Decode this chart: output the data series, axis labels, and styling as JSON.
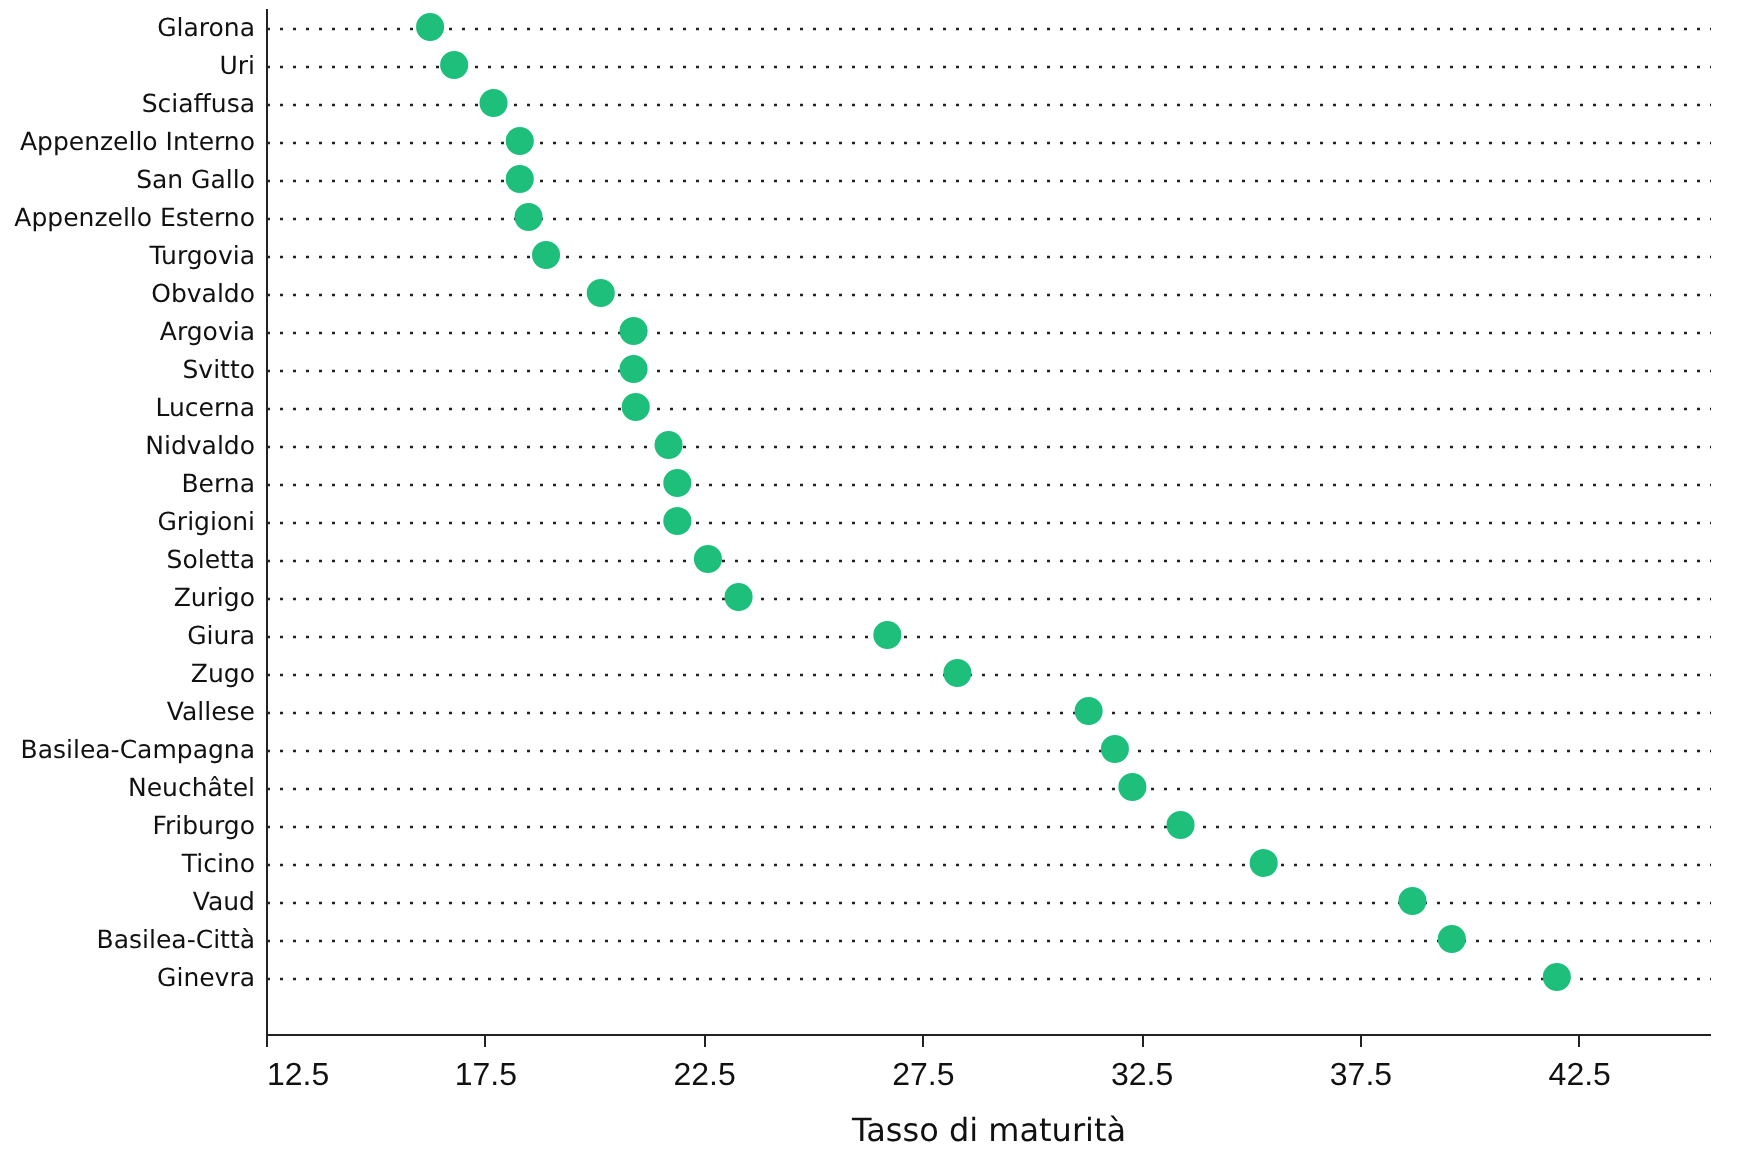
{
  "chart_data": {
    "type": "scatter",
    "xlabel": "Tasso di maturità",
    "orientation": "horizontal",
    "categories": [
      "Glarona",
      "Uri",
      "Sciaffusa",
      "Appenzello Interno",
      "San Gallo",
      "Appenzello Esterno",
      "Turgovia",
      "Obvaldo",
      "Argovia",
      "Svitto",
      "Lucerna",
      "Nidvaldo",
      "Berna",
      "Grigioni",
      "Soletta",
      "Zurigo",
      "Giura",
      "Zugo",
      "Vallese",
      "Basilea-Campagna",
      "Neuchâtel",
      "Friburgo",
      "Ticino",
      "Vaud",
      "Basilea-Città",
      "Ginevra"
    ],
    "values": [
      16.25,
      16.8,
      17.7,
      18.3,
      18.3,
      18.5,
      18.9,
      20.15,
      20.9,
      20.9,
      20.95,
      21.7,
      21.9,
      21.9,
      22.6,
      23.3,
      26.7,
      28.3,
      31.3,
      31.9,
      32.3,
      33.4,
      35.3,
      38.7,
      39.6,
      42.0
    ],
    "color": "#1dbf7b",
    "marker": "circle",
    "xlim": [
      12.5,
      45.5
    ],
    "xticks": [
      12.5,
      17.5,
      22.5,
      27.5,
      32.5,
      37.5,
      42.5
    ],
    "grid": "y"
  }
}
